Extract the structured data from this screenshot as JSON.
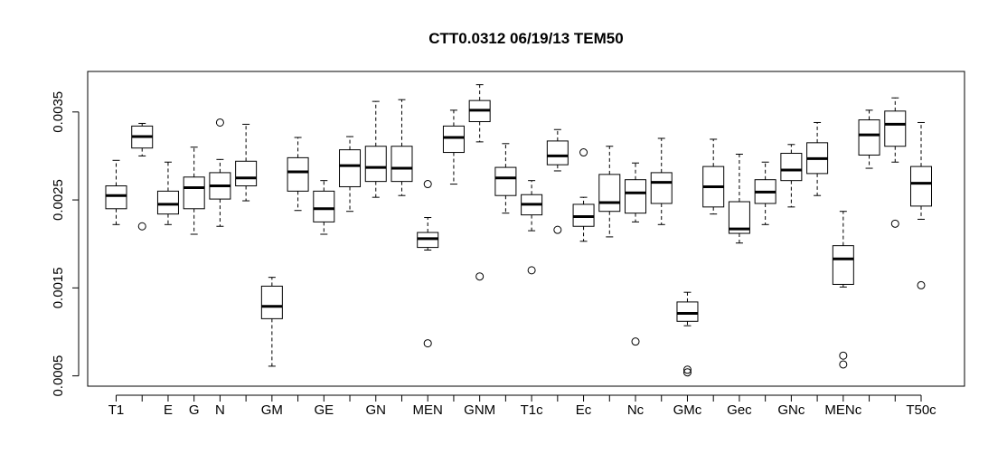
{
  "chart_data": {
    "type": "boxplot",
    "title": "CTT0.0312 06/19/13 TEM50",
    "xlabel": "",
    "ylabel": "",
    "ylim": [
      0.0004,
      0.0038
    ],
    "yticks": [
      0.0005,
      0.0015,
      0.0025,
      0.0035
    ],
    "ytick_labels": [
      "0.0005",
      "0.0015",
      "0.0025",
      "0.0035"
    ],
    "categories": [
      "T1",
      "",
      "E",
      "G",
      "N",
      "",
      "GM",
      "",
      "GE",
      "",
      "GN",
      "",
      "MEN",
      "",
      "GNM",
      "",
      "T1c",
      "",
      "Ec",
      "",
      "Nc",
      "",
      "GMc",
      "",
      "Gec",
      "",
      "GNc",
      "",
      "MENc",
      "",
      "",
      "T50c"
    ],
    "series": [
      {
        "boxes": [
          {
            "lower_whisker": 0.00222,
            "q1": 0.0024,
            "median": 0.00255,
            "q3": 0.00266,
            "upper_whisker": 0.00295,
            "outliers": []
          },
          {
            "lower_whisker": 0.003,
            "q1": 0.00309,
            "median": 0.00322,
            "q3": 0.00334,
            "upper_whisker": 0.00337,
            "outliers": [
              0.0022
            ]
          },
          {
            "lower_whisker": 0.00222,
            "q1": 0.00234,
            "median": 0.00245,
            "q3": 0.0026,
            "upper_whisker": 0.00293,
            "outliers": []
          },
          {
            "lower_whisker": 0.00211,
            "q1": 0.0024,
            "median": 0.00264,
            "q3": 0.00276,
            "upper_whisker": 0.0031,
            "outliers": []
          },
          {
            "lower_whisker": 0.0022,
            "q1": 0.00251,
            "median": 0.00266,
            "q3": 0.00281,
            "upper_whisker": 0.00296,
            "outliers": [
              0.00338
            ]
          },
          {
            "lower_whisker": 0.00249,
            "q1": 0.00266,
            "median": 0.00275,
            "q3": 0.00294,
            "upper_whisker": 0.00336,
            "outliers": []
          },
          {
            "lower_whisker": 0.00061,
            "q1": 0.00115,
            "median": 0.00129,
            "q3": 0.00152,
            "upper_whisker": 0.00162,
            "outliers": []
          },
          {
            "lower_whisker": 0.00238,
            "q1": 0.0026,
            "median": 0.00282,
            "q3": 0.00298,
            "upper_whisker": 0.00321,
            "outliers": []
          },
          {
            "lower_whisker": 0.00211,
            "q1": 0.00225,
            "median": 0.0024,
            "q3": 0.0026,
            "upper_whisker": 0.00272,
            "outliers": []
          },
          {
            "lower_whisker": 0.00237,
            "q1": 0.00265,
            "median": 0.00289,
            "q3": 0.00307,
            "upper_whisker": 0.00322,
            "outliers": []
          },
          {
            "lower_whisker": 0.00253,
            "q1": 0.00271,
            "median": 0.00287,
            "q3": 0.00311,
            "upper_whisker": 0.00362,
            "outliers": []
          },
          {
            "lower_whisker": 0.00255,
            "q1": 0.00271,
            "median": 0.00286,
            "q3": 0.00311,
            "upper_whisker": 0.00364,
            "outliers": []
          },
          {
            "lower_whisker": 0.00193,
            "q1": 0.00196,
            "median": 0.00206,
            "q3": 0.00213,
            "upper_whisker": 0.0023,
            "outliers": [
              0.00268,
              0.00087
            ]
          },
          {
            "lower_whisker": 0.00268,
            "q1": 0.00304,
            "median": 0.00321,
            "q3": 0.00334,
            "upper_whisker": 0.00352,
            "outliers": []
          },
          {
            "lower_whisker": 0.00316,
            "q1": 0.00339,
            "median": 0.00352,
            "q3": 0.00363,
            "upper_whisker": 0.00381,
            "outliers": [
              0.00163
            ]
          },
          {
            "lower_whisker": 0.00235,
            "q1": 0.00255,
            "median": 0.00275,
            "q3": 0.00287,
            "upper_whisker": 0.00314,
            "outliers": []
          },
          {
            "lower_whisker": 0.00215,
            "q1": 0.00233,
            "median": 0.00245,
            "q3": 0.00256,
            "upper_whisker": 0.00272,
            "outliers": [
              0.0017
            ]
          },
          {
            "lower_whisker": 0.00283,
            "q1": 0.0029,
            "median": 0.003,
            "q3": 0.00317,
            "upper_whisker": 0.0033,
            "outliers": [
              0.00216
            ]
          },
          {
            "lower_whisker": 0.00203,
            "q1": 0.0022,
            "median": 0.00231,
            "q3": 0.00245,
            "upper_whisker": 0.00253,
            "outliers": [
              0.00304
            ]
          },
          {
            "lower_whisker": 0.00208,
            "q1": 0.00237,
            "median": 0.00247,
            "q3": 0.00279,
            "upper_whisker": 0.00311,
            "outliers": []
          },
          {
            "lower_whisker": 0.00225,
            "q1": 0.00235,
            "median": 0.00258,
            "q3": 0.00273,
            "upper_whisker": 0.00292,
            "outliers": [
              0.00089
            ]
          },
          {
            "lower_whisker": 0.00222,
            "q1": 0.00246,
            "median": 0.0027,
            "q3": 0.00281,
            "upper_whisker": 0.0032,
            "outliers": []
          },
          {
            "lower_whisker": 0.00107,
            "q1": 0.00112,
            "median": 0.00121,
            "q3": 0.00134,
            "upper_whisker": 0.00145,
            "outliers": [
              0.00057,
              0.00054
            ]
          },
          {
            "lower_whisker": 0.00234,
            "q1": 0.00242,
            "median": 0.00265,
            "q3": 0.00288,
            "upper_whisker": 0.00319,
            "outliers": []
          },
          {
            "lower_whisker": 0.00201,
            "q1": 0.00212,
            "median": 0.00217,
            "q3": 0.00248,
            "upper_whisker": 0.00302,
            "outliers": []
          },
          {
            "lower_whisker": 0.00222,
            "q1": 0.00246,
            "median": 0.00259,
            "q3": 0.00273,
            "upper_whisker": 0.00293,
            "outliers": []
          },
          {
            "lower_whisker": 0.00242,
            "q1": 0.00272,
            "median": 0.00284,
            "q3": 0.00303,
            "upper_whisker": 0.00313,
            "outliers": []
          },
          {
            "lower_whisker": 0.00255,
            "q1": 0.0028,
            "median": 0.00297,
            "q3": 0.00315,
            "upper_whisker": 0.00338,
            "outliers": []
          },
          {
            "lower_whisker": 0.00151,
            "q1": 0.00154,
            "median": 0.00183,
            "q3": 0.00198,
            "upper_whisker": 0.00237,
            "outliers": [
              0.00073,
              0.00063
            ]
          },
          {
            "lower_whisker": 0.00286,
            "q1": 0.00301,
            "median": 0.00324,
            "q3": 0.00341,
            "upper_whisker": 0.00352,
            "outliers": []
          },
          {
            "lower_whisker": 0.00293,
            "q1": 0.00311,
            "median": 0.00336,
            "q3": 0.00351,
            "upper_whisker": 0.00366,
            "outliers": [
              0.00223
            ]
          },
          {
            "lower_whisker": 0.00228,
            "q1": 0.00243,
            "median": 0.00269,
            "q3": 0.00288,
            "upper_whisker": 0.00338,
            "outliers": [
              0.00153
            ]
          }
        ]
      }
    ],
    "grid": false,
    "legend": "none"
  }
}
